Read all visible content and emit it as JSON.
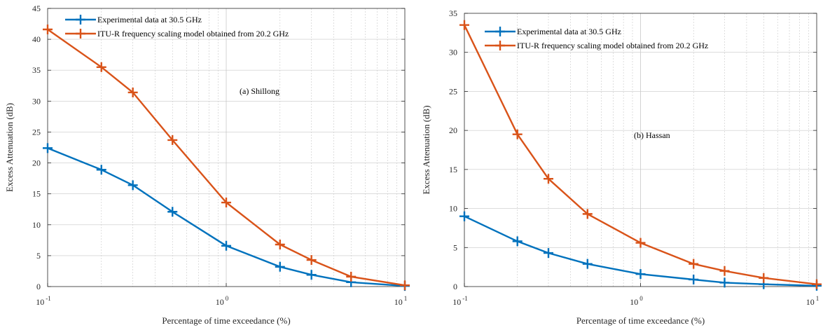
{
  "colors": {
    "experimental": "#0072BD",
    "itu": "#D95319",
    "grid": "#c8c8c8",
    "axis": "#262626"
  },
  "chart_data": [
    {
      "type": "line",
      "annotation": "(a) Shillong",
      "xscale": "log",
      "xlim": [
        0.1,
        10
      ],
      "ylim": [
        0,
        45
      ],
      "yticks": [
        0,
        5,
        10,
        15,
        20,
        25,
        30,
        35,
        40,
        45
      ],
      "xlabel": "Percentage of time exceedance (%)",
      "ylabel": "Excess Attenuation (dB)",
      "grid": true,
      "legend": "top-left",
      "x": [
        0.1,
        0.2,
        0.3,
        0.5,
        1,
        2,
        3,
        5,
        10
      ],
      "series": [
        {
          "name": "Experimental data at 30.5 GHz",
          "values": [
            22.4,
            18.9,
            16.4,
            12.1,
            6.6,
            3.2,
            1.9,
            0.7,
            0.1
          ]
        },
        {
          "name": "ITU-R frequency scaling model obtained from 20.2 GHz",
          "values": [
            41.6,
            35.5,
            31.4,
            23.7,
            13.6,
            6.8,
            4.3,
            1.6,
            0.2
          ]
        }
      ]
    },
    {
      "type": "line",
      "annotation": "(b) Hassan",
      "xscale": "log",
      "xlim": [
        0.1,
        10
      ],
      "ylim": [
        0,
        35
      ],
      "yticks": [
        0,
        5,
        10,
        15,
        20,
        25,
        30,
        35
      ],
      "xlabel": "Percentage of time exceedance (%)",
      "ylabel": "Excess Attenuation (dB)",
      "grid": true,
      "legend": "top-left",
      "x": [
        0.1,
        0.2,
        0.3,
        0.5,
        1,
        2,
        3,
        5,
        10
      ],
      "series": [
        {
          "name": "Experimental data at 30.5 GHz",
          "values": [
            9.0,
            5.8,
            4.3,
            2.9,
            1.6,
            0.9,
            0.5,
            0.3,
            0.1
          ]
        },
        {
          "name": "ITU-R frequency scaling model obtained from 20.2 GHz",
          "values": [
            33.5,
            19.5,
            13.8,
            9.3,
            5.6,
            2.9,
            2.0,
            1.1,
            0.3
          ]
        }
      ]
    }
  ]
}
